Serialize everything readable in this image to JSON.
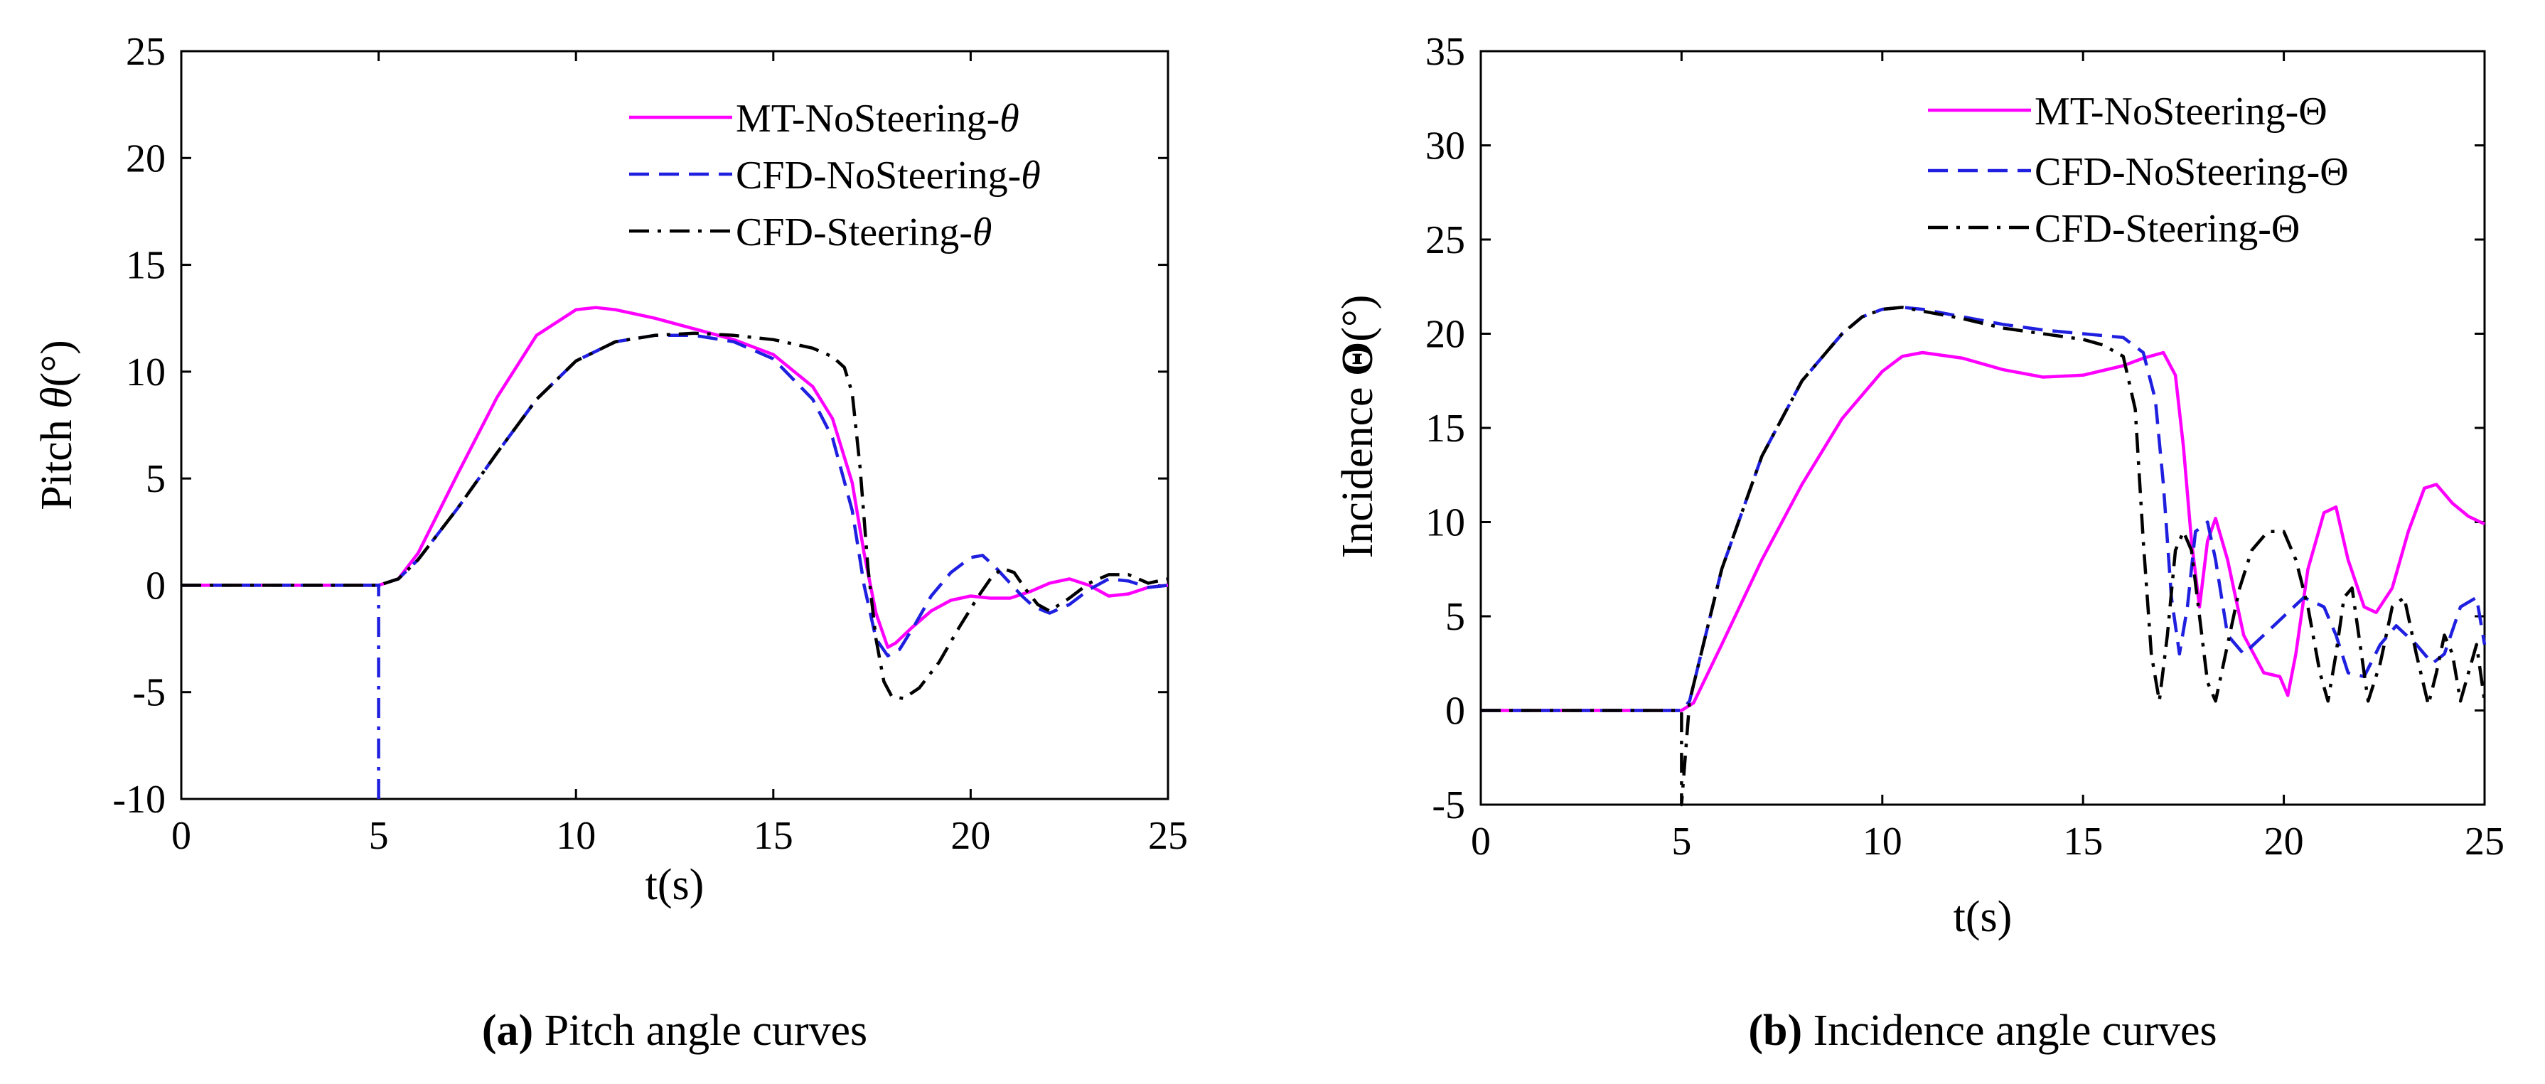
{
  "chart_data": [
    {
      "id": "a",
      "type": "line",
      "caption_label": "(a)",
      "caption_text": " Pitch angle curves",
      "xlabel": "t(s)",
      "ylabel_text": "Pitch ",
      "ylabel_symbol": "θ",
      "ylabel_unit": "(°)",
      "xlim": [
        0,
        25
      ],
      "ylim": [
        -10,
        25
      ],
      "xticks": [
        0,
        5,
        10,
        15,
        20,
        25
      ],
      "yticks": [
        -10,
        -5,
        0,
        5,
        10,
        15,
        20,
        25
      ],
      "legend_position": "top-right",
      "series": [
        {
          "name": "MT-NoSteering-θ",
          "name_main": "MT-NoSteering-",
          "name_symbol": "θ",
          "color": "#ff00ff",
          "dash": "solid",
          "x": [
            0,
            5,
            5.5,
            6,
            7,
            8,
            9,
            10,
            10.5,
            11,
            12,
            13,
            14,
            15,
            16,
            16.5,
            17,
            17.3,
            17.6,
            17.9,
            18.1,
            18.5,
            19,
            19.5,
            20,
            20.5,
            21,
            21.5,
            22,
            22.5,
            23,
            23.5,
            24,
            24.5,
            25
          ],
          "y": [
            0,
            0,
            0.3,
            1.5,
            5.2,
            8.8,
            11.7,
            12.9,
            13.0,
            12.9,
            12.5,
            12.0,
            11.5,
            10.8,
            9.3,
            7.8,
            4.8,
            1.5,
            -1.3,
            -2.9,
            -2.7,
            -2.0,
            -1.2,
            -0.7,
            -0.5,
            -0.6,
            -0.6,
            -0.3,
            0.1,
            0.3,
            0.0,
            -0.5,
            -0.4,
            -0.1,
            0.0
          ]
        },
        {
          "name": "CFD-NoSteering-θ",
          "name_main": "CFD-NoSteering-",
          "name_symbol": "θ",
          "color": "#1f1fe0",
          "dash": "dashed",
          "x": [
            0,
            5,
            5.5,
            6,
            7,
            8,
            9,
            10,
            11,
            12,
            13,
            14,
            15,
            16,
            16.5,
            17,
            17.3,
            17.6,
            17.9,
            18.2,
            18.6,
            19,
            19.5,
            20,
            20.3,
            20.6,
            21,
            21.3,
            21.6,
            22,
            22.5,
            23,
            23.5,
            24,
            24.5,
            25
          ],
          "y": [
            0,
            0,
            0.3,
            1.2,
            3.6,
            6.2,
            8.7,
            10.5,
            11.4,
            11.7,
            11.7,
            11.4,
            10.6,
            8.7,
            6.9,
            3.5,
            0.0,
            -2.5,
            -3.3,
            -3.0,
            -1.8,
            -0.5,
            0.6,
            1.3,
            1.4,
            0.9,
            0.1,
            -0.5,
            -1.0,
            -1.3,
            -0.9,
            -0.2,
            0.3,
            0.2,
            -0.1,
            0.0
          ]
        },
        {
          "name": "CFD-Steering-θ",
          "name_main": "CFD-Steering-",
          "name_symbol": "θ",
          "color": "#000000",
          "dash": "dashdot",
          "x": [
            0,
            5,
            5.5,
            6,
            7,
            8,
            9,
            10,
            11,
            12,
            13,
            14,
            15,
            16,
            16.5,
            16.8,
            17,
            17.2,
            17.4,
            17.6,
            17.8,
            18,
            18.3,
            18.7,
            19.2,
            19.7,
            20.2,
            20.5,
            20.8,
            21.1,
            21.4,
            21.7,
            22,
            22.5,
            23,
            23.5,
            24,
            24.5,
            25
          ],
          "y": [
            0,
            0,
            0.3,
            1.2,
            3.6,
            6.2,
            8.7,
            10.5,
            11.4,
            11.7,
            11.8,
            11.7,
            11.5,
            11.1,
            10.7,
            10.2,
            9.0,
            5.5,
            0.8,
            -2.5,
            -4.5,
            -5.2,
            -5.3,
            -4.8,
            -3.6,
            -2.0,
            -0.5,
            0.3,
            0.8,
            0.6,
            -0.2,
            -0.9,
            -1.2,
            -0.6,
            0.1,
            0.5,
            0.5,
            0.1,
            0.3
          ]
        },
        {
          "name": "",
          "color": "#1f1fe0",
          "dash": "dashdot",
          "x": [
            5,
            5
          ],
          "y": [
            -10,
            0
          ]
        }
      ]
    },
    {
      "id": "b",
      "type": "line",
      "caption_label": "(b)",
      "caption_text": " Incidence angle curves",
      "xlabel": "t(s)",
      "ylabel_text": "Incidence ",
      "ylabel_symbol": "Θ",
      "ylabel_unit": "(°)",
      "xlim": [
        0,
        25
      ],
      "ylim": [
        -5,
        35
      ],
      "xticks": [
        0,
        5,
        10,
        15,
        20,
        25
      ],
      "yticks": [
        -5,
        0,
        5,
        10,
        15,
        20,
        25,
        30,
        35
      ],
      "legend_position": "top-right",
      "series": [
        {
          "name": "MT-NoSteering-Θ",
          "name_main": "MT-NoSteering-",
          "name_symbol": "Θ",
          "color": "#ff00ff",
          "dash": "solid",
          "x": [
            0,
            5,
            5.3,
            6,
            7,
            8,
            9,
            10,
            10.5,
            11,
            12,
            13,
            14,
            15,
            16,
            16.5,
            17,
            17.3,
            17.5,
            17.7,
            17.9,
            18.1,
            18.3,
            18.6,
            19,
            19.5,
            19.9,
            20.1,
            20.3,
            20.6,
            21,
            21.3,
            21.6,
            22,
            22.3,
            22.7,
            23.1,
            23.5,
            23.8,
            24.2,
            24.6,
            25
          ],
          "y": [
            0,
            0,
            0.4,
            3.5,
            8.0,
            12.0,
            15.5,
            18.0,
            18.8,
            19.0,
            18.7,
            18.1,
            17.7,
            17.8,
            18.3,
            18.7,
            19.0,
            17.8,
            14.0,
            9.0,
            5.5,
            9.0,
            10.2,
            8.0,
            4.0,
            2.0,
            1.8,
            0.8,
            3.0,
            7.5,
            10.5,
            10.8,
            8.0,
            5.5,
            5.2,
            6.5,
            9.5,
            11.8,
            12.0,
            11.0,
            10.3,
            9.9
          ]
        },
        {
          "name": "CFD-NoSteering-Θ",
          "name_main": "CFD-NoSteering-",
          "name_symbol": "Θ",
          "color": "#1f1fe0",
          "dash": "dashed",
          "x": [
            0,
            5,
            5.2,
            6,
            7,
            8,
            9,
            9.5,
            10,
            10.5,
            11,
            12,
            13,
            14,
            15,
            16,
            16.5,
            16.8,
            17,
            17.2,
            17.4,
            17.6,
            17.8,
            18.1,
            18.3,
            18.6,
            19,
            19.5,
            20,
            20.5,
            21,
            21.3,
            21.6,
            22,
            22.4,
            22.8,
            23.3,
            23.7,
            24,
            24.4,
            24.8,
            25
          ],
          "y": [
            0,
            0,
            0.5,
            7.5,
            13.5,
            17.5,
            20.0,
            20.9,
            21.3,
            21.4,
            21.3,
            20.9,
            20.5,
            20.2,
            20.0,
            19.8,
            19.0,
            16.5,
            12.0,
            6.0,
            3.0,
            5.5,
            9.5,
            10.0,
            8.0,
            4.0,
            3.0,
            4.0,
            5.0,
            6.0,
            5.5,
            4.0,
            2.0,
            1.8,
            3.5,
            4.5,
            3.5,
            2.5,
            3.0,
            5.5,
            6.0,
            3.5
          ]
        },
        {
          "name": "CFD-Steering-Θ",
          "name_main": "CFD-Steering-",
          "name_symbol": "Θ",
          "color": "#000000",
          "dash": "dashdot",
          "x": [
            0,
            5,
            5,
            5.2,
            6,
            7,
            8,
            9,
            9.5,
            10,
            10.5,
            11,
            12,
            13,
            14,
            15,
            15.5,
            16,
            16.3,
            16.5,
            16.7,
            16.9,
            17.1,
            17.3,
            17.5,
            17.7,
            17.9,
            18.1,
            18.3,
            18.6,
            18.9,
            19.2,
            19.6,
            20,
            20.3,
            20.6,
            20.9,
            21.1,
            21.3,
            21.5,
            21.7,
            21.9,
            22.1,
            22.4,
            22.7,
            23,
            23.3,
            23.6,
            23.8,
            24,
            24.2,
            24.4,
            24.6,
            24.8,
            25
          ],
          "y": [
            0,
            0,
            -5,
            0.5,
            7.5,
            13.5,
            17.5,
            20.0,
            20.9,
            21.3,
            21.4,
            21.2,
            20.8,
            20.3,
            20.0,
            19.7,
            19.4,
            18.8,
            16.0,
            9.0,
            3.0,
            0.5,
            4.0,
            8.5,
            9.5,
            8.5,
            5.0,
            1.5,
            0.5,
            3.5,
            6.5,
            8.5,
            9.5,
            9.5,
            8.0,
            5.5,
            2.0,
            0.5,
            3.0,
            6.0,
            6.5,
            3.5,
            0.5,
            2.5,
            5.5,
            6.0,
            3.0,
            0.3,
            2.0,
            4.0,
            3.0,
            0.5,
            2.0,
            3.5,
            0.5
          ]
        }
      ]
    }
  ]
}
